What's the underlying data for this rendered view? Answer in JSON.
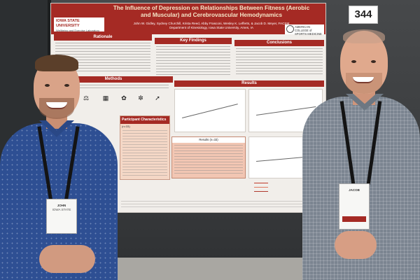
{
  "poster": {
    "title": "The Influence of Depression on Relationships Between Fitness (Aerobic and Muscular) and Cerebrovascular Hemodynamics",
    "authors": "John W. Gidley, Sydney Churchill, Krista Reed, Abby Frasconi, Wesley K. Lefferts, & Jacob D. Meyer, FACSM",
    "department": "Department of Kinesiology, Iowa State University, Ames, IA",
    "logo_left": "IOWA STATE UNIVERSITY",
    "logo_left_sub": "Wellbeing and Exercise Laboratory",
    "logo_right": "AMERICAN COLLEGE of SPORTS MEDICINE",
    "sections": {
      "rationale": "Rationale",
      "key_findings": "Key Findings",
      "conclusions": "Conclusions",
      "methods": "Methods",
      "results": "Results"
    },
    "participant_table_title": "Participant Characteristics",
    "participant_table_sub": "(n=33)",
    "results_table_title": "Results (n=33)"
  },
  "sign_number": "344",
  "left_person": {
    "badge_name": "JOHN",
    "badge_affiliation": "IOWA STATE"
  },
  "right_person": {
    "badge_name": "JACOB"
  },
  "colors": {
    "poster_accent": "#a52a24",
    "left_shirt": "#2e4f93",
    "right_shirt": "#7b8591"
  }
}
